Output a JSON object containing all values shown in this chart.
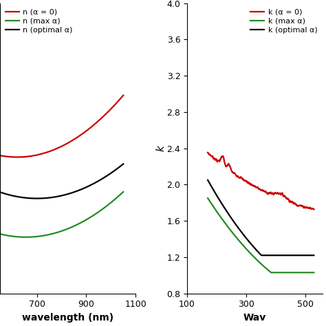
{
  "left_panel": {
    "xlabel": "wavelength (nm)",
    "xlim": [
      550,
      1100
    ],
    "xticks": [
      700,
      900,
      1100
    ],
    "ylim": [
      0.5,
      3.8
    ],
    "yticks": [],
    "legend_labels": [
      "n (α = 0)",
      "n (max α)",
      "n (optimal α)"
    ],
    "colors": [
      "#cc0000",
      "#228B22",
      "#000000"
    ],
    "legend_loc": "upper left"
  },
  "right_panel": {
    "xlabel": "Wav",
    "ylabel": "k",
    "xlim": [
      100,
      560
    ],
    "xticks": [
      100,
      300,
      500
    ],
    "ylim": [
      0.8,
      4.0
    ],
    "yticks": [
      0.8,
      1.2,
      1.6,
      2.0,
      2.4,
      2.8,
      3.2,
      3.6,
      4.0
    ],
    "legend_labels": [
      "k (α = 0)",
      "k (max α)",
      "k (optimal α)"
    ],
    "colors": [
      "#cc0000",
      "#228B22",
      "#000000"
    ],
    "legend_loc": "upper right"
  },
  "background_color": "#ffffff",
  "linewidth": 1.6,
  "fontsize_tick": 9,
  "fontsize_label": 10,
  "fontsize_legend": 8
}
